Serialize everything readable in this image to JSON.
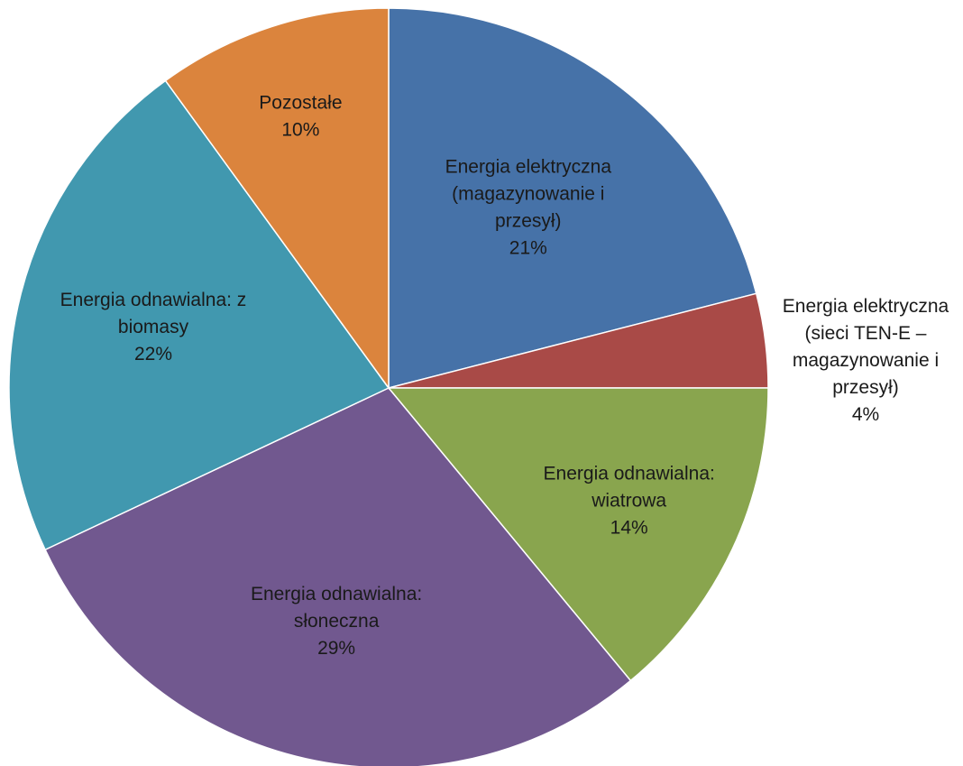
{
  "chart_data": {
    "type": "pie",
    "title": "",
    "start_angle_deg": 0,
    "direction": "clockwise",
    "slices": [
      {
        "label_lines": [
          "Energia elektryczna",
          "(magazynowanie i",
          "przesył)"
        ],
        "value": 21,
        "value_label": "21%",
        "color": "#4672A8",
        "label_position": "inside"
      },
      {
        "label_lines": [
          "Energia elektryczna",
          "(sieci TEN-E –",
          "magazynowanie i",
          "przesył)"
        ],
        "value": 4,
        "value_label": "4%",
        "color": "#A94A47",
        "label_position": "outside"
      },
      {
        "label_lines": [
          "Energia odnawialna:",
          "wiatrowa"
        ],
        "value": 14,
        "value_label": "14%",
        "color": "#89A54E",
        "label_position": "inside"
      },
      {
        "label_lines": [
          "Energia odnawialna:",
          "słoneczna"
        ],
        "value": 29,
        "value_label": "29%",
        "color": "#71588F",
        "label_position": "inside"
      },
      {
        "label_lines": [
          "Energia odnawialna: z",
          "biomasy"
        ],
        "value": 22,
        "value_label": "22%",
        "color": "#4198AF",
        "label_position": "inside"
      },
      {
        "label_lines": [
          "Pozostałe"
        ],
        "value": 10,
        "value_label": "10%",
        "color": "#DB843D",
        "label_position": "inside"
      }
    ]
  }
}
